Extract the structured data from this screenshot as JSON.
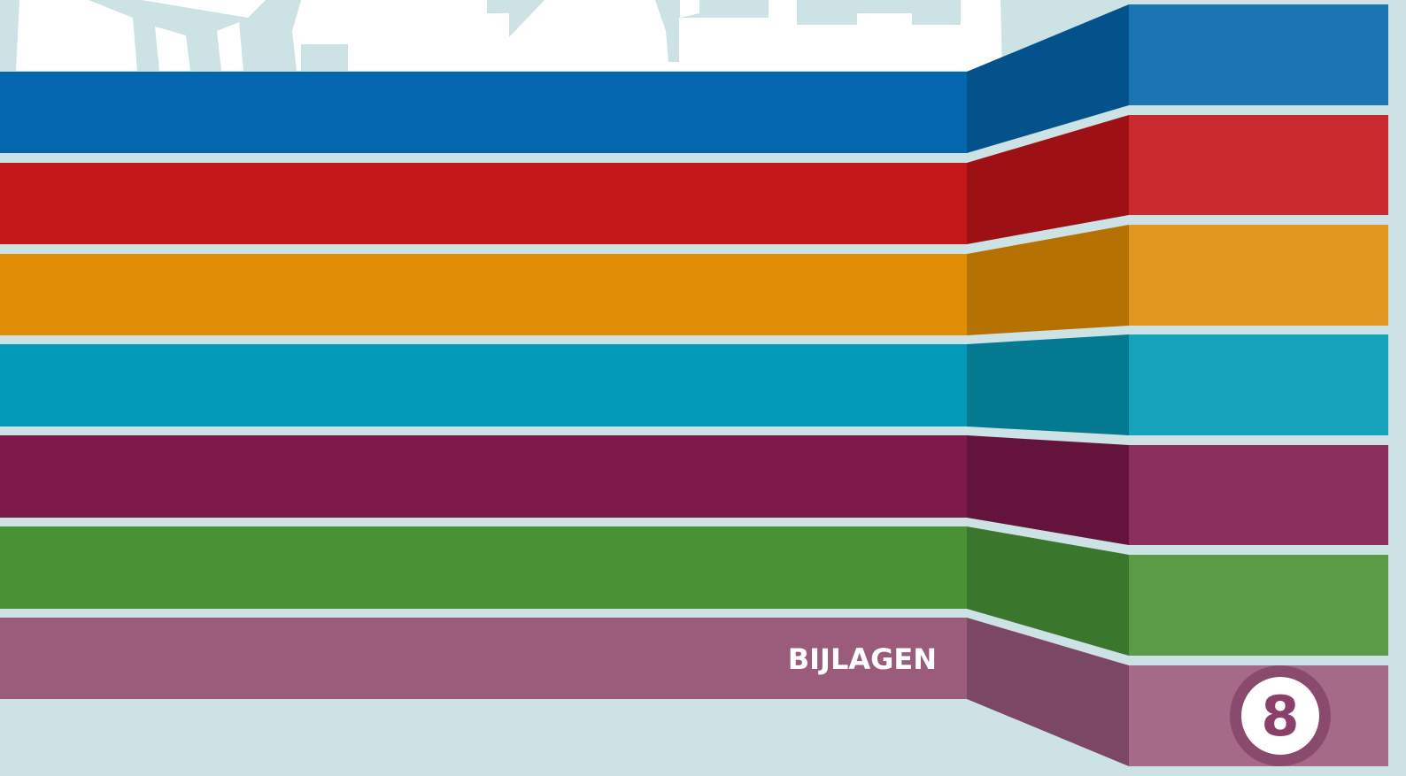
{
  "section": {
    "title": "BIJLAGEN",
    "number": "8"
  }
}
